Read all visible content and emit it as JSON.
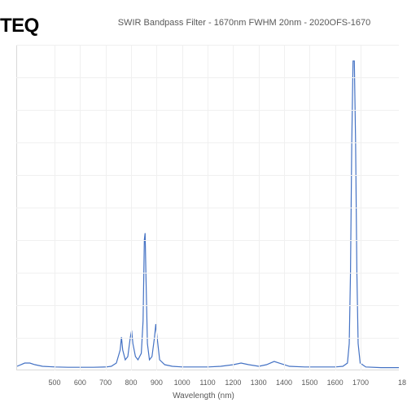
{
  "logo_text": "TEQ",
  "title": "SWIR Bandpass Filter - 1670nm FWHM 20nm - 2020OFS-1670",
  "chart": {
    "type": "line",
    "xlabel": "Wavelength (nm)",
    "xlim": [
      350,
      1850
    ],
    "ylim": [
      0,
      100
    ],
    "xticks": [
      500,
      600,
      700,
      800,
      900,
      1000,
      1100,
      1200,
      1300,
      1400,
      1500,
      1600,
      1700
    ],
    "xticks_right_edge_cut": 18,
    "line_color": "#4472c4",
    "line_width": 1.2,
    "grid_color": "#f0f0f0",
    "background_color": "#ffffff",
    "title_color": "#595959",
    "title_fontsize": 11,
    "label_fontsize": 10,
    "tick_fontsize": 9,
    "series": [
      {
        "x": 350,
        "y": 1
      },
      {
        "x": 380,
        "y": 2
      },
      {
        "x": 400,
        "y": 2
      },
      {
        "x": 420,
        "y": 1.5
      },
      {
        "x": 450,
        "y": 1
      },
      {
        "x": 500,
        "y": 0.8
      },
      {
        "x": 550,
        "y": 0.7
      },
      {
        "x": 600,
        "y": 0.7
      },
      {
        "x": 650,
        "y": 0.7
      },
      {
        "x": 700,
        "y": 0.8
      },
      {
        "x": 720,
        "y": 1
      },
      {
        "x": 740,
        "y": 2
      },
      {
        "x": 755,
        "y": 6
      },
      {
        "x": 760,
        "y": 10
      },
      {
        "x": 765,
        "y": 6
      },
      {
        "x": 775,
        "y": 3
      },
      {
        "x": 785,
        "y": 4
      },
      {
        "x": 795,
        "y": 10
      },
      {
        "x": 800,
        "y": 12
      },
      {
        "x": 805,
        "y": 8
      },
      {
        "x": 815,
        "y": 4
      },
      {
        "x": 825,
        "y": 3
      },
      {
        "x": 838,
        "y": 5
      },
      {
        "x": 845,
        "y": 15
      },
      {
        "x": 850,
        "y": 40
      },
      {
        "x": 853,
        "y": 42
      },
      {
        "x": 856,
        "y": 30
      },
      {
        "x": 862,
        "y": 8
      },
      {
        "x": 870,
        "y": 3
      },
      {
        "x": 880,
        "y": 4
      },
      {
        "x": 890,
        "y": 10
      },
      {
        "x": 895,
        "y": 14
      },
      {
        "x": 900,
        "y": 10
      },
      {
        "x": 910,
        "y": 3
      },
      {
        "x": 930,
        "y": 1.5
      },
      {
        "x": 960,
        "y": 1
      },
      {
        "x": 1000,
        "y": 0.8
      },
      {
        "x": 1050,
        "y": 0.8
      },
      {
        "x": 1100,
        "y": 0.8
      },
      {
        "x": 1150,
        "y": 1
      },
      {
        "x": 1200,
        "y": 1.5
      },
      {
        "x": 1230,
        "y": 2
      },
      {
        "x": 1260,
        "y": 1.5
      },
      {
        "x": 1300,
        "y": 1
      },
      {
        "x": 1330,
        "y": 1.5
      },
      {
        "x": 1360,
        "y": 2.5
      },
      {
        "x": 1380,
        "y": 2
      },
      {
        "x": 1420,
        "y": 1
      },
      {
        "x": 1480,
        "y": 0.8
      },
      {
        "x": 1550,
        "y": 0.8
      },
      {
        "x": 1600,
        "y": 0.8
      },
      {
        "x": 1630,
        "y": 1
      },
      {
        "x": 1648,
        "y": 2
      },
      {
        "x": 1655,
        "y": 8
      },
      {
        "x": 1660,
        "y": 30
      },
      {
        "x": 1665,
        "y": 70
      },
      {
        "x": 1670,
        "y": 95
      },
      {
        "x": 1675,
        "y": 95
      },
      {
        "x": 1680,
        "y": 70
      },
      {
        "x": 1685,
        "y": 30
      },
      {
        "x": 1690,
        "y": 8
      },
      {
        "x": 1698,
        "y": 2
      },
      {
        "x": 1720,
        "y": 0.8
      },
      {
        "x": 1780,
        "y": 0.6
      },
      {
        "x": 1850,
        "y": 0.6
      }
    ]
  }
}
